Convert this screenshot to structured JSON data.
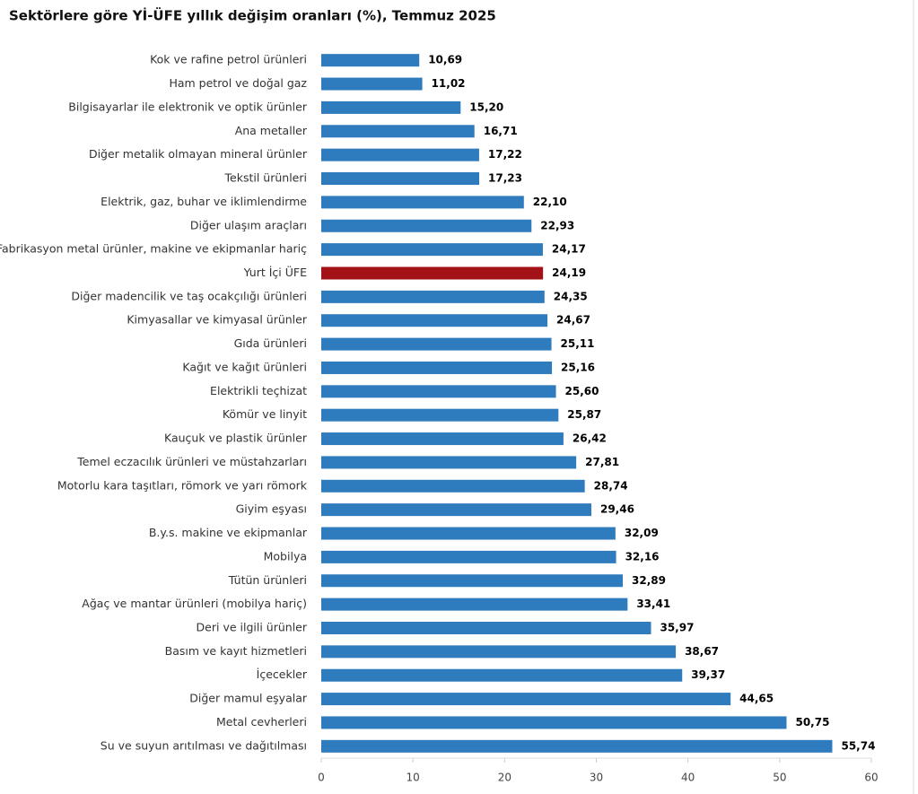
{
  "chart_data": {
    "type": "barh",
    "title": "Sektörlere göre Yİ-ÜFE yıllık değişim oranları (%), Temmuz 2025",
    "categories": [
      "Kok ve rafine petrol ürünleri",
      "Ham petrol ve doğal gaz",
      "Bilgisayarlar ile elektronik ve optik ürünler",
      "Ana metaller",
      "Diğer metalik olmayan mineral ürünler",
      "Tekstil ürünleri",
      "Elektrik, gaz, buhar ve iklimlendirme",
      "Diğer ulaşım araçları",
      "Fabrikasyon metal ürünler, makine ve ekipmanlar hariç",
      "Yurt İçi ÜFE",
      "Diğer madencilik ve taş ocakçılığı ürünleri",
      "Kimyasallar ve kimyasal ürünler",
      "Gıda ürünleri",
      "Kağıt ve kağıt ürünleri",
      "Elektrikli teçhizat",
      "Kömür ve linyit",
      "Kauçuk ve plastik ürünler",
      "Temel eczacılık ürünleri ve müstahzarları",
      "Motorlu kara taşıtları, römork ve yarı römork",
      "Giyim eşyası",
      "B.y.s. makine ve ekipmanlar",
      "Mobilya",
      "Tütün ürünleri",
      "Ağaç ve mantar ürünleri (mobilya hariç)",
      "Deri ve ilgili ürünler",
      "Basım ve kayıt hizmetleri",
      "İçecekler",
      "Diğer mamul eşyalar",
      "Metal cevherleri",
      "Su ve suyun arıtılması ve dağıtılması"
    ],
    "values": [
      10.69,
      11.02,
      15.2,
      16.71,
      17.22,
      17.23,
      22.1,
      22.93,
      24.17,
      24.19,
      24.35,
      24.67,
      25.11,
      25.16,
      25.6,
      25.87,
      26.42,
      27.81,
      28.74,
      29.46,
      32.09,
      32.16,
      32.89,
      33.41,
      35.97,
      38.67,
      39.37,
      44.65,
      50.75,
      55.74
    ],
    "value_labels": [
      "10,69",
      "11,02",
      "15,20",
      "16,71",
      "17,22",
      "17,23",
      "22,10",
      "22,93",
      "24,17",
      "24,19",
      "24,35",
      "24,67",
      "25,11",
      "25,16",
      "25,60",
      "25,87",
      "26,42",
      "27,81",
      "28,74",
      "29,46",
      "32,09",
      "32,16",
      "32,89",
      "33,41",
      "35,97",
      "38,67",
      "39,37",
      "44,65",
      "50,75",
      "55,74"
    ],
    "colors": [
      "#2e7bbd",
      "#2e7bbd",
      "#2e7bbd",
      "#2e7bbd",
      "#2e7bbd",
      "#2e7bbd",
      "#2e7bbd",
      "#2e7bbd",
      "#2e7bbd",
      "#a31217",
      "#2e7bbd",
      "#2e7bbd",
      "#2e7bbd",
      "#2e7bbd",
      "#2e7bbd",
      "#2e7bbd",
      "#2e7bbd",
      "#2e7bbd",
      "#2e7bbd",
      "#2e7bbd",
      "#2e7bbd",
      "#2e7bbd",
      "#2e7bbd",
      "#2e7bbd",
      "#2e7bbd",
      "#2e7bbd",
      "#2e7bbd",
      "#2e7bbd",
      "#2e7bbd",
      "#2e7bbd"
    ],
    "xlim": [
      0,
      60
    ],
    "xticks": [
      0,
      10,
      20,
      30,
      40,
      50,
      60
    ],
    "grid": false
  }
}
